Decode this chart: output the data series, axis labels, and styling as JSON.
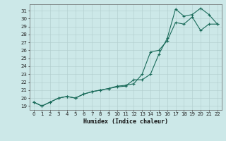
{
  "xlabel": "Humidex (Indice chaleur)",
  "bg_color": "#cce8e8",
  "grid_color": "#b0cccc",
  "line_color": "#1a6b5a",
  "xlim": [
    -0.5,
    22.5
  ],
  "ylim": [
    18.5,
    31.8
  ],
  "yticks": [
    19,
    20,
    21,
    22,
    23,
    24,
    25,
    26,
    27,
    28,
    29,
    30,
    31
  ],
  "xticks": [
    0,
    1,
    2,
    3,
    4,
    5,
    6,
    7,
    8,
    9,
    10,
    11,
    12,
    13,
    14,
    15,
    16,
    17,
    18,
    19,
    20,
    21,
    22
  ],
  "line1_x": [
    0,
    1,
    2,
    3,
    4,
    5,
    6,
    7,
    8,
    9,
    10,
    11,
    12,
    13,
    14,
    15,
    16,
    17,
    18,
    19,
    20,
    21,
    22
  ],
  "line1_y": [
    19.5,
    19.0,
    19.5,
    20.0,
    20.2,
    20.0,
    20.5,
    20.8,
    21.0,
    21.2,
    21.4,
    21.5,
    22.3,
    22.3,
    23.0,
    25.5,
    27.5,
    31.2,
    30.3,
    30.5,
    31.3,
    30.5,
    29.3
  ],
  "line2_x": [
    0,
    1,
    2,
    3,
    4,
    5,
    6,
    7,
    8,
    9,
    10,
    11,
    12,
    13,
    14,
    15,
    16,
    17,
    18,
    19,
    20,
    21,
    22
  ],
  "line2_y": [
    19.5,
    19.0,
    19.5,
    20.0,
    20.2,
    20.0,
    20.5,
    20.8,
    21.0,
    21.2,
    21.5,
    21.6,
    21.8,
    23.0,
    25.8,
    26.0,
    27.2,
    29.5,
    29.3,
    30.2,
    28.5,
    29.3,
    29.3
  ]
}
